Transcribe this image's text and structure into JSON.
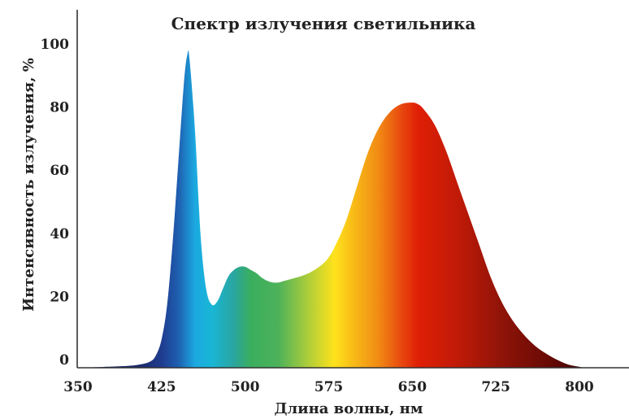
{
  "chart_data": {
    "type": "area",
    "title": "Спектр излучения светильника",
    "xlabel": "Длина волны, нм",
    "ylabel": "Интенсивность излучения, %",
    "xlim": [
      350,
      815
    ],
    "ylim": [
      0,
      100
    ],
    "x_ticks": [
      350,
      425,
      500,
      575,
      650,
      725,
      800
    ],
    "y_ticks": [
      0,
      20,
      40,
      60,
      80,
      100
    ],
    "grid": false,
    "fill": "spectral gradient (wavelength colored)",
    "x": [
      350,
      390,
      405,
      415,
      420,
      425,
      430,
      435,
      440,
      445,
      448,
      450,
      455,
      460,
      465,
      470,
      475,
      480,
      485,
      490,
      495,
      500,
      505,
      510,
      515,
      520,
      525,
      530,
      535,
      540,
      550,
      560,
      570,
      575,
      580,
      590,
      600,
      610,
      620,
      630,
      640,
      650,
      655,
      660,
      670,
      680,
      690,
      700,
      710,
      720,
      730,
      740,
      750,
      760,
      770,
      780,
      790,
      800,
      803
    ],
    "values": [
      0,
      0.5,
      1,
      2,
      4,
      9,
      20,
      40,
      65,
      90,
      99,
      98,
      75,
      42,
      25,
      20,
      21,
      25,
      29,
      31,
      32,
      32,
      31,
      30,
      28.5,
      27.5,
      27,
      27,
      27.5,
      28,
      29,
      30.5,
      33,
      35,
      38,
      46,
      57,
      68,
      76,
      81,
      83.5,
      84,
      83.5,
      82,
      77,
      69,
      59,
      49,
      39,
      29,
      21,
      15,
      10.5,
      7,
      4.5,
      2.5,
      1,
      0.3,
      0
    ],
    "gradient_stops": [
      {
        "x": 405,
        "color": "#1d2a6b"
      },
      {
        "x": 425,
        "color": "#1f3c8f"
      },
      {
        "x": 440,
        "color": "#1f5fb0"
      },
      {
        "x": 455,
        "color": "#1ba9e0"
      },
      {
        "x": 470,
        "color": "#19b6d6"
      },
      {
        "x": 490,
        "color": "#2aa5a0"
      },
      {
        "x": 505,
        "color": "#3aae5e"
      },
      {
        "x": 530,
        "color": "#4db25a"
      },
      {
        "x": 555,
        "color": "#a8cc3c"
      },
      {
        "x": 580,
        "color": "#ffe21c"
      },
      {
        "x": 600,
        "color": "#f7b517"
      },
      {
        "x": 620,
        "color": "#f18a14"
      },
      {
        "x": 640,
        "color": "#e8490f"
      },
      {
        "x": 655,
        "color": "#e01f06"
      },
      {
        "x": 690,
        "color": "#c11a07"
      },
      {
        "x": 730,
        "color": "#8f1408"
      },
      {
        "x": 770,
        "color": "#6b0a05"
      },
      {
        "x": 803,
        "color": "#3f0404"
      }
    ]
  }
}
